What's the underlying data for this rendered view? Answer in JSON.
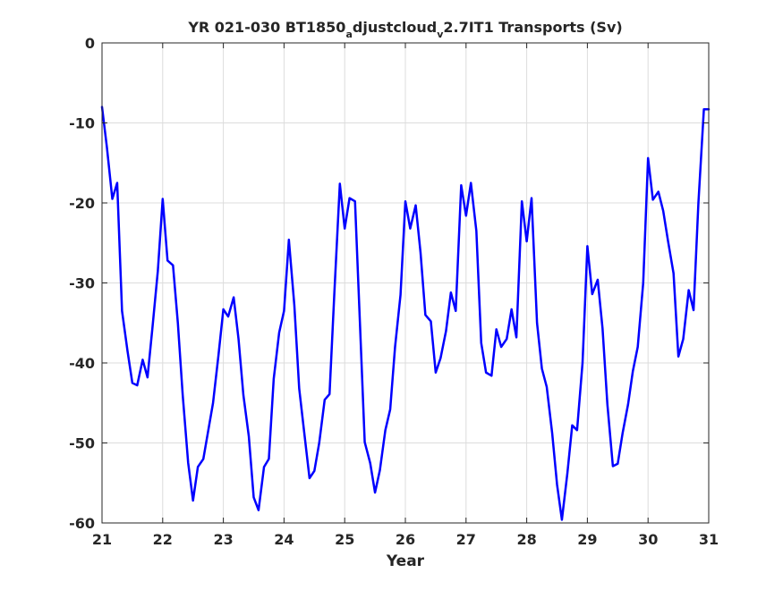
{
  "chart_data": {
    "type": "line",
    "title": {
      "main": "YR 021-030 BT1850",
      "sub1": "a",
      "mid": "djustcloud",
      "sub2": "v",
      "tail": "2.7IT1 Transports (Sv)"
    },
    "xlabel": "Year",
    "ylabel": "",
    "xlim": [
      21,
      31
    ],
    "ylim": [
      -60,
      0
    ],
    "xticks": [
      21,
      22,
      23,
      24,
      25,
      26,
      27,
      28,
      29,
      30,
      31
    ],
    "yticks": [
      0,
      -10,
      -20,
      -30,
      -40,
      -50,
      -60
    ],
    "grid": true,
    "line_color": "#0000ff",
    "series": [
      {
        "x": [
          21.0,
          21.08,
          21.17,
          21.25,
          21.33,
          21.42,
          21.5,
          21.58,
          21.67,
          21.75,
          21.83,
          21.92,
          22.0,
          22.08,
          22.17,
          22.25,
          22.33,
          22.42,
          22.5,
          22.58,
          22.67,
          22.75,
          22.83,
          22.92,
          23.0,
          23.08,
          23.17,
          23.25,
          23.33,
          23.42,
          23.5,
          23.58,
          23.67,
          23.75,
          23.83,
          23.92,
          24.0,
          24.08,
          24.17,
          24.25,
          24.33,
          24.42,
          24.5,
          24.58,
          24.67,
          24.75,
          24.83,
          24.92,
          25.0,
          25.08,
          25.17,
          25.25,
          25.33,
          25.42,
          25.5,
          25.58,
          25.67,
          25.75,
          25.83,
          25.92,
          26.0,
          26.08,
          26.17,
          26.25,
          26.33,
          26.42,
          26.5,
          26.58,
          26.67,
          26.75,
          26.83,
          26.92,
          27.0,
          27.08,
          27.17,
          27.25,
          27.33,
          27.42,
          27.5,
          27.58,
          27.67,
          27.75,
          27.83,
          27.92,
          28.0,
          28.08,
          28.17,
          28.25,
          28.33,
          28.42,
          28.5,
          28.58,
          28.67,
          28.75,
          28.83,
          28.92,
          29.0,
          29.08,
          29.17,
          29.25,
          29.33,
          29.42,
          29.5,
          29.58,
          29.67,
          29.75,
          29.83,
          29.92,
          30.0,
          30.08,
          30.17,
          30.25,
          30.33,
          30.42,
          30.5,
          30.58,
          30.67,
          30.75,
          30.83,
          30.92,
          31.0
        ],
        "y": [
          -8.0,
          -13.0,
          -19.5,
          -17.5,
          -33.5,
          -38.5,
          -42.5,
          -42.8,
          -39.6,
          -41.8,
          -35.7,
          -28.5,
          -19.5,
          -27.2,
          -27.8,
          -35.0,
          -44.0,
          -52.5,
          -57.2,
          -53.0,
          -52.0,
          -48.5,
          -45.0,
          -39.0,
          -33.3,
          -34.2,
          -31.8,
          -37.0,
          -44.0,
          -49.2,
          -56.8,
          -58.4,
          -53.0,
          -52.0,
          -42.0,
          -36.2,
          -33.5,
          -24.6,
          -32.8,
          -43.2,
          -48.5,
          -54.4,
          -53.5,
          -50.0,
          -44.6,
          -43.9,
          -31.2,
          -17.6,
          -23.2,
          -19.4,
          -19.8,
          -34.8,
          -49.9,
          -52.5,
          -56.2,
          -53.4,
          -48.4,
          -45.8,
          -38.0,
          -31.5,
          -19.8,
          -23.2,
          -20.3,
          -26.2,
          -34.0,
          -34.8,
          -41.2,
          -39.4,
          -36.0,
          -31.2,
          -33.5,
          -17.8,
          -21.6,
          -17.5,
          -23.5,
          -37.5,
          -41.2,
          -41.6,
          -35.8,
          -38.0,
          -37.0,
          -33.3,
          -36.8,
          -19.8,
          -24.8,
          -19.4,
          -35.0,
          -40.7,
          -43.0,
          -48.8,
          -55.2,
          -59.6,
          -53.8,
          -47.8,
          -48.4,
          -40.0,
          -25.4,
          -31.4,
          -29.6,
          -35.7,
          -45.2,
          -52.9,
          -52.6,
          -48.8,
          -45.2,
          -41.0,
          -38.0,
          -30.0,
          -14.4,
          -19.6,
          -18.6,
          -21.0,
          -24.8,
          -28.8,
          -39.2,
          -37.0,
          -30.9,
          -33.4,
          -20.0,
          -8.3,
          -8.3
        ]
      }
    ]
  }
}
